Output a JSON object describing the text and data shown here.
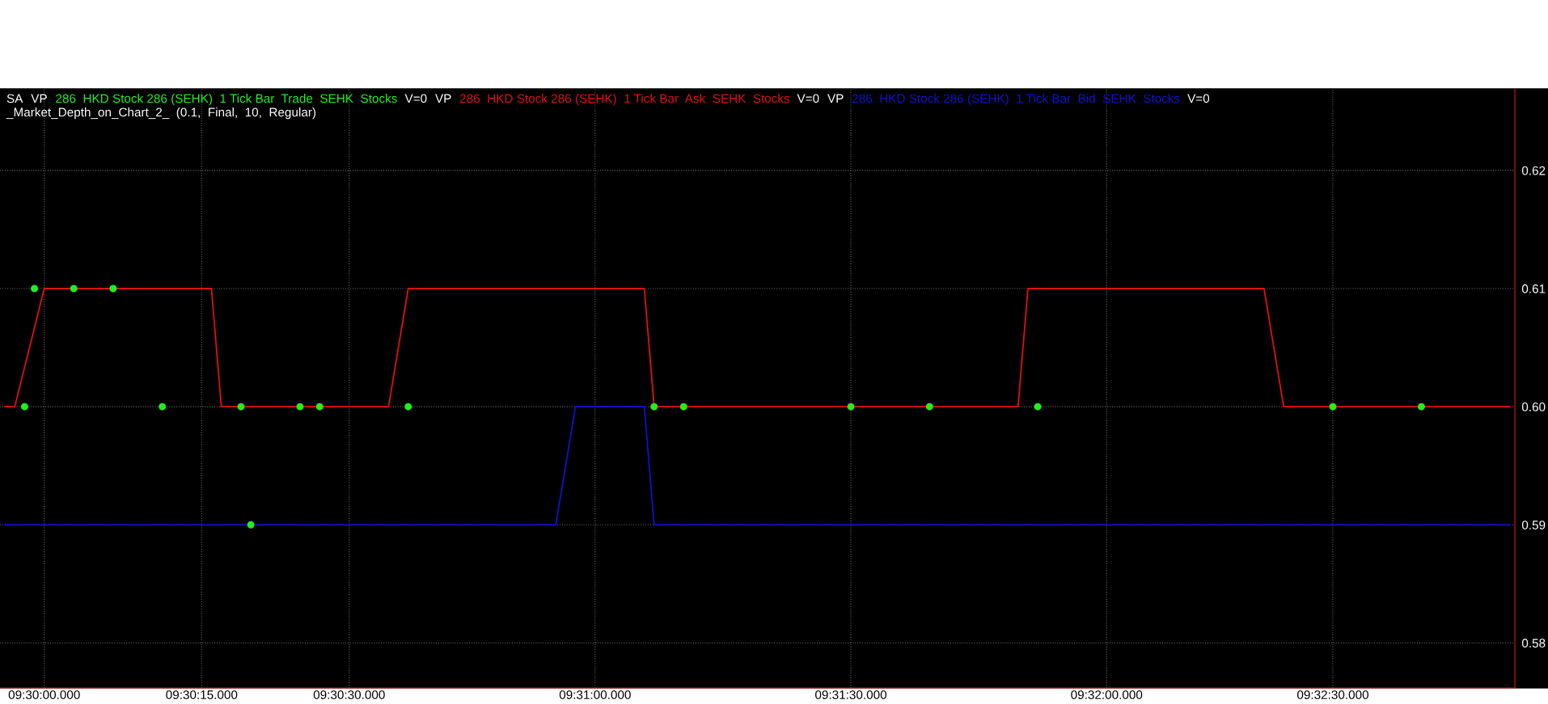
{
  "chart_data": {
    "type": "line",
    "annotations": [
      "SA",
      "VP",
      "V=0",
      "_Market_Depth_on_Chart_2_  (0.1,  Final,  10,  Regular)"
    ],
    "categories": [
      null,
      null,
      null,
      null,
      "09:30:00.000",
      null,
      null,
      null,
      null,
      null,
      null,
      null,
      null,
      null,
      null,
      null,
      null,
      null,
      null,
      null,
      "09:30:15.000",
      null,
      null,
      null,
      null,
      null,
      null,
      null,
      null,
      null,
      null,
      null,
      null,
      null,
      null,
      "09:30:30.000",
      null,
      null,
      null,
      null,
      null,
      null,
      null,
      null,
      null,
      null,
      null,
      null,
      null,
      null,
      null,
      null,
      null,
      null,
      null,
      null,
      null,
      null,
      null,
      null,
      "09:31:00.000",
      null,
      null,
      null,
      null,
      null,
      null,
      null,
      null,
      null,
      null,
      null,
      null,
      null,
      null,
      null,
      null,
      null,
      null,
      null,
      null,
      null,
      null,
      null,
      null,
      null,
      "09:31:30.000",
      null,
      null,
      null,
      null,
      null,
      null,
      null,
      null,
      null,
      null,
      null,
      null,
      null,
      null,
      null,
      null,
      null,
      null,
      null,
      null,
      null,
      null,
      null,
      null,
      null,
      "09:32:00.000",
      null,
      null,
      null,
      null,
      null,
      null,
      null,
      null,
      null,
      null,
      null,
      null,
      null,
      null,
      null,
      null,
      null,
      null,
      null,
      null,
      null,
      null,
      "09:32:30.000",
      null,
      null,
      null,
      null,
      null,
      null,
      null,
      null,
      null,
      null,
      null,
      null,
      null,
      null,
      null,
      null,
      null,
      null
    ],
    "ylim": [
      0.5762,
      0.6269
    ],
    "yticks": [
      {
        "value": 0.58,
        "label": "0.58"
      },
      {
        "value": 0.59,
        "label": "0.59"
      },
      {
        "value": 0.6,
        "label": "0.60"
      },
      {
        "value": 0.61,
        "label": "0.61"
      },
      {
        "value": 0.62,
        "label": "0.62"
      }
    ],
    "grid": true,
    "legend": "top left",
    "series": [
      {
        "name": "286  HKD Stock 286 (SEHK)  1 Tick Bar  Trade  SEHK  Stocks",
        "type": "scatter",
        "marker": "circle",
        "color": "#22ee22",
        "values": [
          null,
          null,
          0.6,
          0.61,
          null,
          null,
          null,
          0.61,
          null,
          null,
          null,
          0.61,
          null,
          null,
          null,
          null,
          0.6,
          null,
          null,
          null,
          null,
          null,
          null,
          null,
          0.6,
          0.59,
          null,
          null,
          null,
          null,
          0.6,
          null,
          0.6,
          null,
          null,
          null,
          null,
          null,
          null,
          null,
          null,
          0.6,
          null,
          null,
          null,
          null,
          null,
          null,
          null,
          null,
          null,
          null,
          null,
          null,
          null,
          null,
          null,
          null,
          null,
          null,
          null,
          null,
          null,
          null,
          null,
          null,
          0.6,
          null,
          null,
          0.6,
          null,
          null,
          null,
          null,
          null,
          null,
          null,
          null,
          null,
          null,
          null,
          null,
          null,
          null,
          null,
          null,
          0.6,
          null,
          null,
          null,
          null,
          null,
          null,
          null,
          0.6,
          null,
          null,
          null,
          null,
          null,
          null,
          null,
          null,
          null,
          null,
          0.6,
          null,
          null,
          null,
          null,
          null,
          null,
          null,
          null,
          null,
          null,
          null,
          null,
          null,
          null,
          null,
          null,
          null,
          null,
          null,
          null,
          null,
          null,
          null,
          null,
          null,
          null,
          null,
          null,
          null,
          0.6,
          null,
          null,
          null,
          null,
          null,
          null,
          null,
          null,
          0.6,
          null,
          null,
          null,
          null,
          null,
          null,
          null,
          null,
          null
        ]
      },
      {
        "name": "286  HKD Stock 286 (SEHK)  1 Tick Bar  Ask  SEHK  Stocks",
        "color": "#dd1111",
        "values": [
          0.6,
          0.6,
          null,
          null,
          0.61,
          null,
          null,
          null,
          null,
          null,
          null,
          null,
          null,
          null,
          null,
          null,
          null,
          null,
          null,
          null,
          null,
          0.61,
          0.6,
          null,
          null,
          null,
          null,
          null,
          null,
          null,
          null,
          null,
          null,
          null,
          null,
          null,
          null,
          null,
          null,
          0.6,
          null,
          0.61,
          null,
          null,
          null,
          null,
          null,
          null,
          null,
          null,
          null,
          null,
          null,
          null,
          null,
          null,
          null,
          null,
          null,
          null,
          null,
          null,
          null,
          null,
          null,
          0.61,
          0.6,
          null,
          null,
          null,
          null,
          null,
          null,
          null,
          null,
          null,
          null,
          null,
          null,
          null,
          null,
          null,
          null,
          null,
          null,
          null,
          null,
          null,
          null,
          null,
          null,
          null,
          null,
          null,
          null,
          null,
          null,
          null,
          null,
          null,
          null,
          null,
          null,
          0.6,
          0.61,
          null,
          null,
          null,
          null,
          null,
          null,
          null,
          null,
          null,
          null,
          null,
          null,
          null,
          null,
          null,
          null,
          null,
          null,
          null,
          null,
          null,
          null,
          null,
          0.61,
          null,
          0.6,
          null,
          null,
          null,
          null,
          null,
          null,
          null,
          null,
          null,
          null,
          null,
          null,
          null,
          null,
          null,
          null,
          null,
          null,
          null,
          null,
          null,
          null,
          0.6
        ]
      },
      {
        "name": "286  HKD Stock 286 (SEHK)  1 Tick Bar  Bid  SEHK  Stocks",
        "color": "#1111cc",
        "values": [
          0.59,
          null,
          null,
          null,
          null,
          null,
          null,
          null,
          null,
          null,
          null,
          null,
          null,
          null,
          null,
          null,
          null,
          null,
          null,
          null,
          null,
          null,
          null,
          null,
          null,
          null,
          null,
          null,
          null,
          null,
          null,
          null,
          null,
          null,
          null,
          null,
          null,
          null,
          null,
          null,
          null,
          null,
          null,
          null,
          null,
          null,
          null,
          null,
          null,
          null,
          null,
          null,
          null,
          null,
          null,
          null,
          0.59,
          null,
          0.6,
          null,
          null,
          null,
          null,
          null,
          null,
          0.6,
          0.59,
          null,
          null,
          null,
          null,
          null,
          null,
          null,
          null,
          null,
          null,
          null,
          null,
          null,
          null,
          null,
          null,
          null,
          null,
          null,
          null,
          null,
          null,
          null,
          null,
          null,
          null,
          null,
          null,
          null,
          null,
          null,
          null,
          null,
          null,
          null,
          null,
          null,
          null,
          null,
          null,
          null,
          null,
          null,
          null,
          null,
          null,
          null,
          null,
          null,
          null,
          null,
          null,
          null,
          null,
          null,
          null,
          null,
          null,
          null,
          null,
          null,
          null,
          null,
          null,
          null,
          null,
          null,
          null,
          null,
          null,
          null,
          null,
          null,
          null,
          null,
          null,
          null,
          null,
          null,
          null,
          null,
          null,
          null,
          null,
          null,
          null,
          0.59
        ]
      }
    ]
  }
}
